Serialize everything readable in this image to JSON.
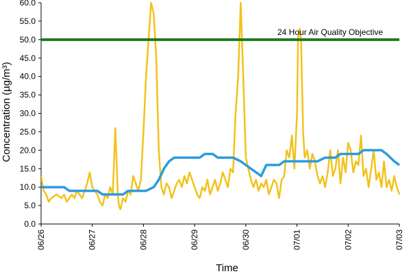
{
  "chart_data": {
    "type": "line",
    "title": "",
    "xlabel": "Time",
    "ylabel": "Concentration (µg/m³)",
    "ylim": [
      0,
      60
    ],
    "y_ticks": [
      "0.0",
      "5.0",
      "10.0",
      "15.0",
      "20.0",
      "25.0",
      "30.0",
      "35.0",
      "40.0",
      "45.0",
      "50.0",
      "55.0",
      "60.0"
    ],
    "x_tick_labels": [
      "06/26",
      "06/27",
      "06/28",
      "06/29",
      "06/30",
      "07/01",
      "07/02",
      "07/03"
    ],
    "xlim_days": [
      0,
      7
    ],
    "grid": false,
    "colors": {
      "hourly": "#f2c21b",
      "average": "#2b9be0",
      "objective": "#1e7a1e"
    },
    "objective": {
      "value": 50,
      "label": "24 Hour Air Quality Objective"
    },
    "series": [
      {
        "points": [
          [
            0.0,
            13
          ],
          [
            0.05,
            9
          ],
          [
            0.1,
            8
          ],
          [
            0.15,
            6
          ],
          [
            0.2,
            7
          ],
          [
            0.3,
            8
          ],
          [
            0.4,
            7
          ],
          [
            0.45,
            8
          ],
          [
            0.5,
            6
          ],
          [
            0.55,
            7
          ],
          [
            0.6,
            8
          ],
          [
            0.65,
            7
          ],
          [
            0.7,
            9
          ],
          [
            0.75,
            8
          ],
          [
            0.8,
            7
          ],
          [
            0.85,
            9
          ],
          [
            0.9,
            11
          ],
          [
            0.95,
            14
          ],
          [
            1.0,
            10
          ],
          [
            1.05,
            9
          ],
          [
            1.1,
            8
          ],
          [
            1.15,
            6
          ],
          [
            1.2,
            5
          ],
          [
            1.25,
            8
          ],
          [
            1.3,
            7
          ],
          [
            1.35,
            10
          ],
          [
            1.4,
            8
          ],
          [
            1.45,
            26
          ],
          [
            1.5,
            8
          ],
          [
            1.52,
            5
          ],
          [
            1.55,
            4
          ],
          [
            1.6,
            7
          ],
          [
            1.65,
            6
          ],
          [
            1.7,
            9
          ],
          [
            1.75,
            8
          ],
          [
            1.8,
            13
          ],
          [
            1.85,
            11
          ],
          [
            1.9,
            9
          ],
          [
            1.95,
            12
          ],
          [
            2.0,
            25
          ],
          [
            2.05,
            40
          ],
          [
            2.1,
            50
          ],
          [
            2.15,
            60
          ],
          [
            2.2,
            57
          ],
          [
            2.25,
            45
          ],
          [
            2.3,
            20
          ],
          [
            2.35,
            10
          ],
          [
            2.4,
            8
          ],
          [
            2.45,
            11
          ],
          [
            2.5,
            10
          ],
          [
            2.55,
            7
          ],
          [
            2.6,
            9
          ],
          [
            2.65,
            11
          ],
          [
            2.7,
            12
          ],
          [
            2.75,
            10
          ],
          [
            2.8,
            13
          ],
          [
            2.85,
            11
          ],
          [
            2.9,
            14
          ],
          [
            2.95,
            12
          ],
          [
            3.0,
            10
          ],
          [
            3.05,
            8
          ],
          [
            3.1,
            7
          ],
          [
            3.15,
            10
          ],
          [
            3.2,
            9
          ],
          [
            3.25,
            12
          ],
          [
            3.3,
            8
          ],
          [
            3.35,
            10
          ],
          [
            3.4,
            12
          ],
          [
            3.45,
            9
          ],
          [
            3.5,
            11
          ],
          [
            3.55,
            14
          ],
          [
            3.6,
            12
          ],
          [
            3.65,
            10
          ],
          [
            3.7,
            15
          ],
          [
            3.75,
            14
          ],
          [
            3.8,
            30
          ],
          [
            3.85,
            40
          ],
          [
            3.9,
            60
          ],
          [
            3.95,
            40
          ],
          [
            4.0,
            18
          ],
          [
            4.05,
            15
          ],
          [
            4.1,
            12
          ],
          [
            4.15,
            10
          ],
          [
            4.2,
            12
          ],
          [
            4.25,
            9
          ],
          [
            4.3,
            11
          ],
          [
            4.35,
            10
          ],
          [
            4.4,
            12
          ],
          [
            4.45,
            8
          ],
          [
            4.5,
            10
          ],
          [
            4.55,
            12
          ],
          [
            4.6,
            11
          ],
          [
            4.65,
            7
          ],
          [
            4.7,
            12
          ],
          [
            4.75,
            13
          ],
          [
            4.8,
            20
          ],
          [
            4.85,
            18
          ],
          [
            4.9,
            24
          ],
          [
            4.95,
            15
          ],
          [
            5.0,
            30
          ],
          [
            5.02,
            50
          ],
          [
            5.05,
            53
          ],
          [
            5.08,
            50
          ],
          [
            5.12,
            25
          ],
          [
            5.15,
            18
          ],
          [
            5.2,
            20
          ],
          [
            5.25,
            15
          ],
          [
            5.3,
            19
          ],
          [
            5.35,
            17
          ],
          [
            5.4,
            13
          ],
          [
            5.45,
            11
          ],
          [
            5.5,
            13
          ],
          [
            5.55,
            10
          ],
          [
            5.6,
            14
          ],
          [
            5.65,
            20
          ],
          [
            5.7,
            13
          ],
          [
            5.75,
            15
          ],
          [
            5.8,
            20
          ],
          [
            5.85,
            11
          ],
          [
            5.9,
            18
          ],
          [
            5.95,
            14
          ],
          [
            6.0,
            22
          ],
          [
            6.05,
            20
          ],
          [
            6.1,
            14
          ],
          [
            6.15,
            17
          ],
          [
            6.2,
            16
          ],
          [
            6.25,
            24
          ],
          [
            6.3,
            13
          ],
          [
            6.35,
            15
          ],
          [
            6.4,
            10
          ],
          [
            6.45,
            15
          ],
          [
            6.5,
            20
          ],
          [
            6.55,
            12
          ],
          [
            6.6,
            14
          ],
          [
            6.65,
            10
          ],
          [
            6.7,
            17
          ],
          [
            6.75,
            10
          ],
          [
            6.8,
            12
          ],
          [
            6.85,
            9
          ],
          [
            6.9,
            13
          ],
          [
            6.95,
            10
          ],
          [
            7.0,
            8
          ]
        ]
      },
      {
        "points": [
          [
            0.0,
            10
          ],
          [
            0.45,
            10
          ],
          [
            0.55,
            9
          ],
          [
            1.1,
            9
          ],
          [
            1.2,
            8
          ],
          [
            1.6,
            8
          ],
          [
            1.7,
            9
          ],
          [
            2.05,
            9
          ],
          [
            2.2,
            10
          ],
          [
            2.3,
            12
          ],
          [
            2.4,
            15
          ],
          [
            2.5,
            17
          ],
          [
            2.6,
            18
          ],
          [
            3.1,
            18
          ],
          [
            3.2,
            19
          ],
          [
            3.35,
            19
          ],
          [
            3.45,
            18
          ],
          [
            3.75,
            18
          ],
          [
            3.9,
            17
          ],
          [
            4.1,
            15
          ],
          [
            4.2,
            14
          ],
          [
            4.3,
            13
          ],
          [
            4.4,
            16
          ],
          [
            4.65,
            16
          ],
          [
            4.75,
            17
          ],
          [
            5.4,
            17
          ],
          [
            5.55,
            18
          ],
          [
            5.75,
            18
          ],
          [
            5.85,
            19
          ],
          [
            6.2,
            19
          ],
          [
            6.3,
            20
          ],
          [
            6.65,
            20
          ],
          [
            6.75,
            19
          ],
          [
            6.9,
            17
          ],
          [
            7.0,
            16
          ]
        ]
      }
    ]
  }
}
